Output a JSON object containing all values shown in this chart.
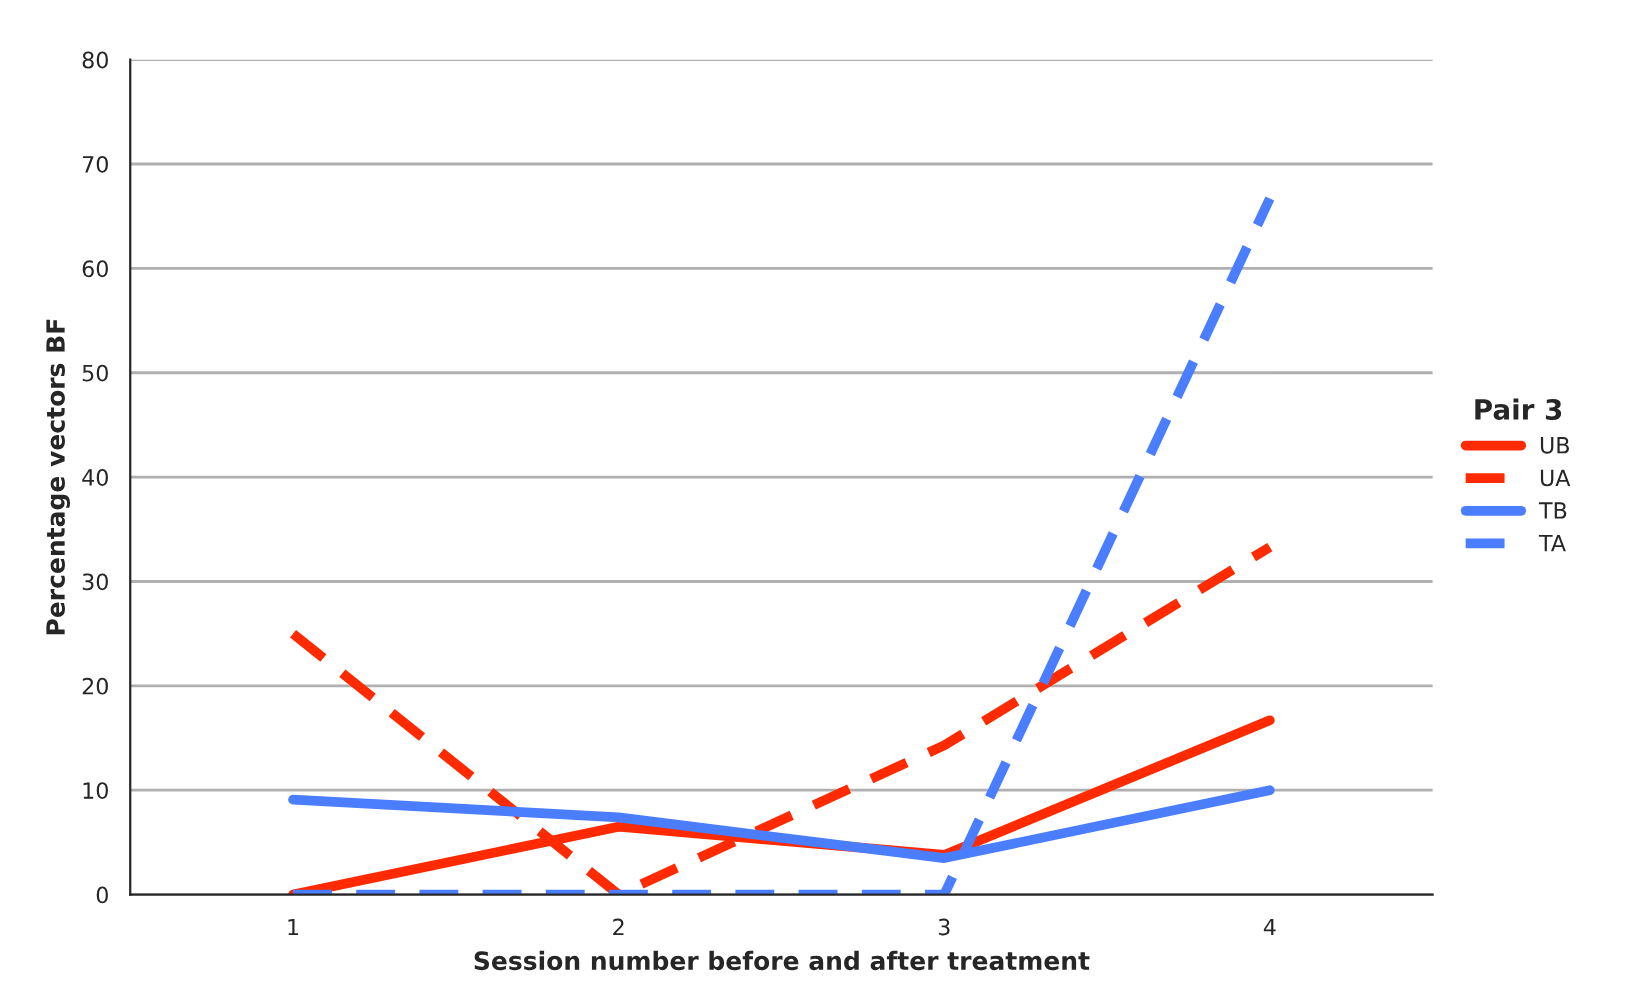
{
  "chart_data": {
    "type": "line",
    "xlabel": "Session number before and after treatment",
    "ylabel": "Percentage vectors BF",
    "legend_title": "Pair 3",
    "categories": [
      "1",
      "2",
      "3",
      "4"
    ],
    "series": [
      {
        "name": "UB",
        "color": "#ff2a00",
        "values": [
          0,
          6.5,
          3.8,
          16.7
        ],
        "line_style": "solid"
      },
      {
        "name": "UA",
        "color": "#ff2a00",
        "values": [
          25,
          0,
          14.3,
          33.3
        ],
        "line_style": "dashed"
      },
      {
        "name": "TB",
        "color": "#4a7eff",
        "values": [
          9.1,
          7.4,
          3.5,
          10
        ],
        "line_style": "solid"
      },
      {
        "name": "TA",
        "color": "#4a7eff",
        "values": [
          0,
          0,
          0,
          66.7
        ],
        "line_style": "dashed"
      }
    ],
    "ylim": [
      0,
      80
    ],
    "yticks": [
      0,
      10,
      20,
      30,
      40,
      50,
      60,
      70,
      80
    ],
    "grid": "y",
    "legend": "right",
    "marker": "none"
  }
}
